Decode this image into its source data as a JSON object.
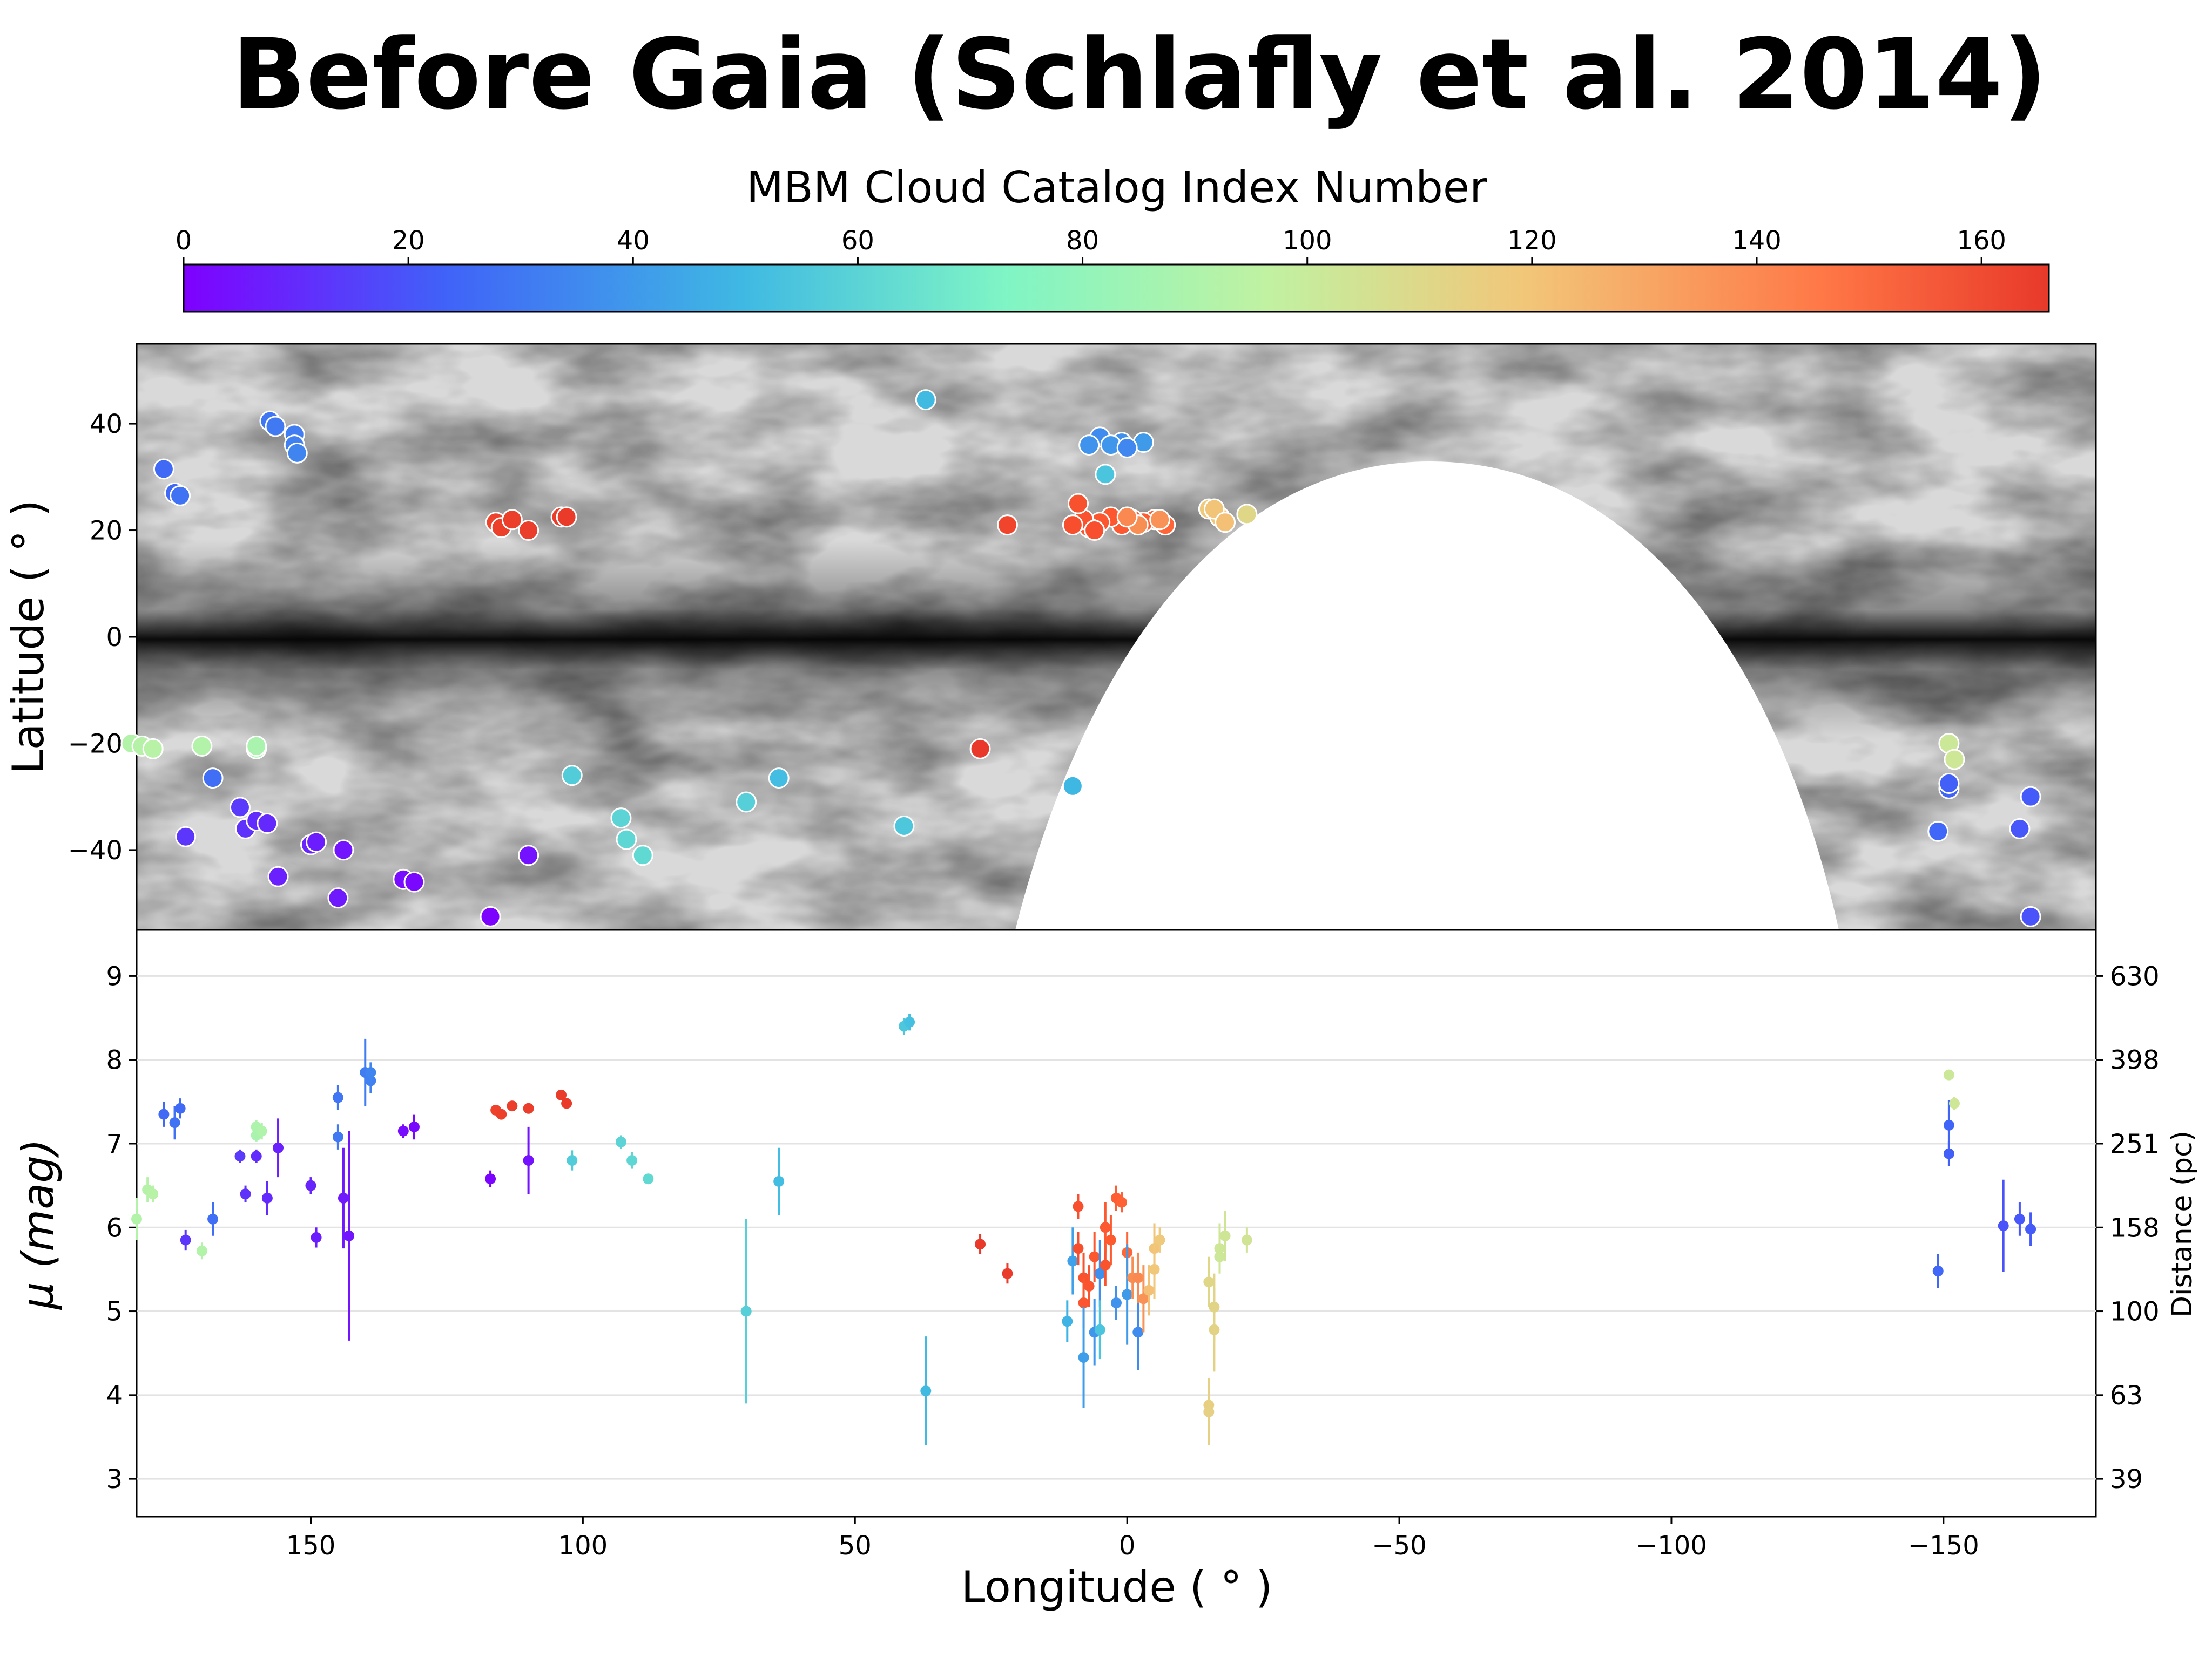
{
  "figure": {
    "title": "Before Gaia (Schlafly et al. 2014)"
  },
  "colorbar": {
    "label": "MBM Cloud Catalog Index Number",
    "range": [
      0,
      166
    ],
    "ticks": [
      0,
      20,
      40,
      60,
      80,
      100,
      120,
      140,
      160
    ],
    "colormap": "rainbow",
    "stops": [
      "#7f00ff",
      "#4062f8",
      "#3fb9e3",
      "#7ff5c5",
      "#c0f2a2",
      "#f2c679",
      "#ff5b30",
      "#e8392a"
    ]
  },
  "chart_data": [
    {
      "type": "scatter",
      "name": "sky-map",
      "background": "grayscale dust extinction map of the Galactic plane; unobserved southern region shown blank",
      "xlabel": "",
      "ylabel": "Latitude ( ° )",
      "xlim": [
        182,
        -178
      ],
      "ylim": [
        -55,
        55
      ],
      "yticks": [
        -40,
        -20,
        0,
        20,
        40
      ],
      "points": [
        {
          "l": 177,
          "b": 31.5,
          "c": 26
        },
        {
          "l": 175,
          "b": 27,
          "c": 26
        },
        {
          "l": 174,
          "b": 26.5,
          "c": 28
        },
        {
          "l": 157.5,
          "b": 40.5,
          "c": 29
        },
        {
          "l": 156.5,
          "b": 39.5,
          "c": 30
        },
        {
          "l": 153,
          "b": 38,
          "c": 31
        },
        {
          "l": 153,
          "b": 36,
          "c": 32
        },
        {
          "l": 152.5,
          "b": 34.5,
          "c": 33
        },
        {
          "l": 116,
          "b": 21.5,
          "c": 160
        },
        {
          "l": 115,
          "b": 20.5,
          "c": 161
        },
        {
          "l": 113,
          "b": 22,
          "c": 162
        },
        {
          "l": 110,
          "b": 20,
          "c": 163
        },
        {
          "l": 104,
          "b": 22.5,
          "c": 164
        },
        {
          "l": 103,
          "b": 22.5,
          "c": 165
        },
        {
          "l": 1,
          "b": 36.5,
          "c": 36
        },
        {
          "l": 5,
          "b": 37.5,
          "c": 35
        },
        {
          "l": 7,
          "b": 36,
          "c": 37
        },
        {
          "l": 3,
          "b": 36,
          "c": 38
        },
        {
          "l": -3,
          "b": 36.5,
          "c": 39
        },
        {
          "l": 0,
          "b": 35.5,
          "c": 34
        },
        {
          "l": 4,
          "b": 30.5,
          "c": 52
        },
        {
          "l": 37,
          "b": 44.5,
          "c": 48
        },
        {
          "l": -7,
          "b": 21,
          "c": 140
        },
        {
          "l": -5,
          "b": 22,
          "c": 141
        },
        {
          "l": -3,
          "b": 21.5,
          "c": 142
        },
        {
          "l": -1,
          "b": 22,
          "c": 143
        },
        {
          "l": 1,
          "b": 21,
          "c": 144
        },
        {
          "l": 3,
          "b": 22.5,
          "c": 145
        },
        {
          "l": 5,
          "b": 21.5,
          "c": 146
        },
        {
          "l": 7,
          "b": 20.5,
          "c": 147
        },
        {
          "l": 8,
          "b": 22,
          "c": 148
        },
        {
          "l": 9,
          "b": 25,
          "c": 149
        },
        {
          "l": 6,
          "b": 20,
          "c": 150
        },
        {
          "l": 10,
          "b": 21,
          "c": 151
        },
        {
          "l": -6,
          "b": 22,
          "c": 130
        },
        {
          "l": -2,
          "b": 21,
          "c": 131
        },
        {
          "l": 0,
          "b": 22.5,
          "c": 132
        },
        {
          "l": -15,
          "b": 24,
          "c": 117
        },
        {
          "l": -17,
          "b": 22.5,
          "c": 118
        },
        {
          "l": -16,
          "b": 24,
          "c": 119
        },
        {
          "l": -18,
          "b": 21.5,
          "c": 120
        },
        {
          "l": -22,
          "b": 23,
          "c": 110
        },
        {
          "l": 22,
          "b": 21,
          "c": 158
        },
        {
          "l": 183,
          "b": -20,
          "c": 90
        },
        {
          "l": 181,
          "b": -20.5,
          "c": 91
        },
        {
          "l": 179,
          "b": -21,
          "c": 92
        },
        {
          "l": 170,
          "b": -20.5,
          "c": 90
        },
        {
          "l": 160,
          "b": -21,
          "c": 88
        },
        {
          "l": 160,
          "b": -20.5,
          "c": 87
        },
        {
          "l": 173,
          "b": -37.5,
          "c": 13
        },
        {
          "l": 168,
          "b": -26.5,
          "c": 27
        },
        {
          "l": 163,
          "b": -32,
          "c": 14
        },
        {
          "l": 162,
          "b": -36,
          "c": 12
        },
        {
          "l": 160,
          "b": -34.5,
          "c": 11
        },
        {
          "l": 158,
          "b": -35,
          "c": 10
        },
        {
          "l": 156,
          "b": -45,
          "c": 8
        },
        {
          "l": 150,
          "b": -39,
          "c": 9
        },
        {
          "l": 149,
          "b": -38.5,
          "c": 7
        },
        {
          "l": 145,
          "b": -49,
          "c": 6
        },
        {
          "l": 144,
          "b": -40,
          "c": 5
        },
        {
          "l": 133,
          "b": -45.5,
          "c": 3
        },
        {
          "l": 131,
          "b": -46,
          "c": 2
        },
        {
          "l": 117,
          "b": -52.5,
          "c": 1
        },
        {
          "l": 110,
          "b": -41,
          "c": 4
        },
        {
          "l": 102,
          "b": -26,
          "c": 55
        },
        {
          "l": 93,
          "b": -34,
          "c": 58
        },
        {
          "l": 92,
          "b": -38,
          "c": 59
        },
        {
          "l": 89,
          "b": -41,
          "c": 60
        },
        {
          "l": 70,
          "b": -31,
          "c": 56
        },
        {
          "l": 64,
          "b": -26.5,
          "c": 49
        },
        {
          "l": 41,
          "b": -35.5,
          "c": 53
        },
        {
          "l": 27,
          "b": -21,
          "c": 166
        },
        {
          "l": 10,
          "b": -28,
          "c": 47
        },
        {
          "l": -149,
          "b": -36.5,
          "c": 25
        },
        {
          "l": -151,
          "b": -28.5,
          "c": 24
        },
        {
          "l": -151,
          "b": -27.5,
          "c": 23
        },
        {
          "l": -151,
          "b": -20,
          "c": 100
        },
        {
          "l": -152,
          "b": -23,
          "c": 101
        },
        {
          "l": -166,
          "b": -30,
          "c": 22
        },
        {
          "l": -164,
          "b": -36,
          "c": 21
        },
        {
          "l": -166,
          "b": -52.5,
          "c": 20
        }
      ]
    },
    {
      "type": "scatter",
      "name": "distance-modulus",
      "xlabel": "Longitude ( ° )",
      "ylabel": "μ (mag)",
      "ylabel_right": "Distance (pc)",
      "xlim": [
        182,
        -178
      ],
      "ylim": [
        2.55,
        9.55
      ],
      "xticks": [
        150,
        100,
        50,
        0,
        -50,
        -100,
        -150
      ],
      "xtick_labels": [
        "150",
        "100",
        "50",
        "0",
        "−50",
        "−100",
        "−150"
      ],
      "yticks": [
        3,
        4,
        5,
        6,
        7,
        8,
        9
      ],
      "yticks_right": [
        {
          "mu": 3,
          "label": "39"
        },
        {
          "mu": 4,
          "label": "63"
        },
        {
          "mu": 5,
          "label": "100"
        },
        {
          "mu": 6,
          "label": "158"
        },
        {
          "mu": 7,
          "label": "251"
        },
        {
          "mu": 8,
          "label": "398"
        },
        {
          "mu": 9,
          "label": "630"
        }
      ],
      "points": [
        {
          "l": 177,
          "mu": 7.35,
          "err": 0.15,
          "c": 26
        },
        {
          "l": 175,
          "mu": 7.25,
          "err": 0.2,
          "c": 28
        },
        {
          "l": 174,
          "mu": 7.42,
          "err": 0.12,
          "c": 26
        },
        {
          "l": 173,
          "mu": 5.85,
          "err": 0.12,
          "c": 13
        },
        {
          "l": 168,
          "mu": 6.1,
          "err": 0.2,
          "c": 27
        },
        {
          "l": 182,
          "mu": 6.1,
          "err": 0.25,
          "c": 90
        },
        {
          "l": 180,
          "mu": 6.45,
          "err": 0.15,
          "c": 91
        },
        {
          "l": 179,
          "mu": 6.4,
          "err": 0.1,
          "c": 92
        },
        {
          "l": 170,
          "mu": 5.72,
          "err": 0.1,
          "c": 90
        },
        {
          "l": 160,
          "mu": 7.2,
          "err": 0.08,
          "c": 88
        },
        {
          "l": 160,
          "mu": 7.1,
          "err": 0.08,
          "c": 87
        },
        {
          "l": 159,
          "mu": 7.15,
          "err": 0.1,
          "c": 89
        },
        {
          "l": 163,
          "mu": 6.85,
          "err": 0.08,
          "c": 14
        },
        {
          "l": 162,
          "mu": 6.4,
          "err": 0.1,
          "c": 12
        },
        {
          "l": 160,
          "mu": 6.85,
          "err": 0.08,
          "c": 11
        },
        {
          "l": 158,
          "mu": 6.35,
          "err": 0.2,
          "c": 10
        },
        {
          "l": 156,
          "mu": 6.95,
          "err": 0.35,
          "c": 8
        },
        {
          "l": 150,
          "mu": 6.5,
          "err": 0.1,
          "c": 9
        },
        {
          "l": 149,
          "mu": 5.88,
          "err": 0.12,
          "c": 7
        },
        {
          "l": 145,
          "mu": 7.08,
          "err": 0.15,
          "c": 30
        },
        {
          "l": 145,
          "mu": 7.55,
          "err": 0.15,
          "c": 29
        },
        {
          "l": 144,
          "mu": 6.35,
          "err": 0.6,
          "c": 6
        },
        {
          "l": 143,
          "mu": 5.9,
          "err": 1.25,
          "c": 5
        },
        {
          "l": 140,
          "mu": 7.85,
          "err": 0.4,
          "c": 31
        },
        {
          "l": 139,
          "mu": 7.75,
          "err": 0.15,
          "c": 32
        },
        {
          "l": 139,
          "mu": 7.85,
          "err": 0.12,
          "c": 33
        },
        {
          "l": 133,
          "mu": 7.15,
          "err": 0.08,
          "c": 3
        },
        {
          "l": 131,
          "mu": 7.2,
          "err": 0.15,
          "c": 2
        },
        {
          "l": 117,
          "mu": 6.58,
          "err": 0.1,
          "c": 1
        },
        {
          "l": 110,
          "mu": 6.8,
          "err": 0.4,
          "c": 4
        },
        {
          "l": 116,
          "mu": 7.4,
          "err": 0.05,
          "c": 160
        },
        {
          "l": 115,
          "mu": 7.35,
          "err": 0.06,
          "c": 161
        },
        {
          "l": 113,
          "mu": 7.45,
          "err": 0.05,
          "c": 162
        },
        {
          "l": 110,
          "mu": 7.42,
          "err": 0.05,
          "c": 163
        },
        {
          "l": 104,
          "mu": 7.58,
          "err": 0.05,
          "c": 164
        },
        {
          "l": 103,
          "mu": 7.48,
          "err": 0.05,
          "c": 165
        },
        {
          "l": 102,
          "mu": 6.8,
          "err": 0.12,
          "c": 55
        },
        {
          "l": 93,
          "mu": 7.02,
          "err": 0.08,
          "c": 58
        },
        {
          "l": 91,
          "mu": 6.8,
          "err": 0.1,
          "c": 59
        },
        {
          "l": 88,
          "mu": 6.58,
          "err": 0.06,
          "c": 60
        },
        {
          "l": 70,
          "mu": 5.0,
          "err": 1.1,
          "c": 56
        },
        {
          "l": 64,
          "mu": 6.55,
          "err": 0.4,
          "c": 49
        },
        {
          "l": 41,
          "mu": 8.4,
          "err": 0.1,
          "c": 53
        },
        {
          "l": 40,
          "mu": 8.45,
          "err": 0.1,
          "c": 50
        },
        {
          "l": 37,
          "mu": 4.05,
          "err": 0.65,
          "c": 48
        },
        {
          "l": 27,
          "mu": 5.8,
          "err": 0.12,
          "c": 166
        },
        {
          "l": 22,
          "mu": 5.45,
          "err": 0.12,
          "c": 164
        },
        {
          "l": 11,
          "mu": 4.88,
          "err": 0.25,
          "c": 46
        },
        {
          "l": 10,
          "mu": 5.6,
          "err": 0.4,
          "c": 41
        },
        {
          "l": 9,
          "mu": 6.25,
          "err": 0.15,
          "c": 150
        },
        {
          "l": 9,
          "mu": 5.75,
          "err": 0.2,
          "c": 151
        },
        {
          "l": 8,
          "mu": 5.4,
          "err": 0.3,
          "c": 149
        },
        {
          "l": 8,
          "mu": 5.1,
          "err": 0.3,
          "c": 146
        },
        {
          "l": 8,
          "mu": 4.45,
          "err": 0.6,
          "c": 40
        },
        {
          "l": 7,
          "mu": 5.3,
          "err": 0.25,
          "c": 148
        },
        {
          "l": 6,
          "mu": 5.65,
          "err": 0.3,
          "c": 145
        },
        {
          "l": 6,
          "mu": 4.75,
          "err": 0.4,
          "c": 38
        },
        {
          "l": 5,
          "mu": 5.45,
          "err": 0.4,
          "c": 36
        },
        {
          "l": 5,
          "mu": 4.78,
          "err": 0.35,
          "c": 52
        },
        {
          "l": 4,
          "mu": 5.55,
          "err": 0.25,
          "c": 147
        },
        {
          "l": 4,
          "mu": 6.0,
          "err": 0.3,
          "c": 144
        },
        {
          "l": 3,
          "mu": 5.85,
          "err": 0.3,
          "c": 143
        },
        {
          "l": 2,
          "mu": 6.35,
          "err": 0.15,
          "c": 142
        },
        {
          "l": 2,
          "mu": 5.1,
          "err": 0.2,
          "c": 37
        },
        {
          "l": 1,
          "mu": 6.3,
          "err": 0.12,
          "c": 141
        },
        {
          "l": 0,
          "mu": 5.7,
          "err": 0.25,
          "c": 140
        },
        {
          "l": 0,
          "mu": 5.2,
          "err": 0.6,
          "c": 39
        },
        {
          "l": -1,
          "mu": 5.4,
          "err": 0.25,
          "c": 131
        },
        {
          "l": -2,
          "mu": 4.75,
          "err": 0.45,
          "c": 35
        },
        {
          "l": -2,
          "mu": 5.4,
          "err": 0.3,
          "c": 132
        },
        {
          "l": -3,
          "mu": 5.15,
          "err": 0.4,
          "c": 130
        },
        {
          "l": -4,
          "mu": 5.25,
          "err": 0.3,
          "c": 120
        },
        {
          "l": -5,
          "mu": 5.75,
          "err": 0.3,
          "c": 119
        },
        {
          "l": -5,
          "mu": 5.5,
          "err": 0.35,
          "c": 118
        },
        {
          "l": -6,
          "mu": 5.85,
          "err": 0.15,
          "c": 117
        },
        {
          "l": -15,
          "mu": 5.35,
          "err": 0.3,
          "c": 110
        },
        {
          "l": -15,
          "mu": 3.88,
          "err": 0.3,
          "c": 114
        },
        {
          "l": -15,
          "mu": 3.8,
          "err": 0.4,
          "c": 113
        },
        {
          "l": -16,
          "mu": 4.78,
          "err": 0.5,
          "c": 112
        },
        {
          "l": -16,
          "mu": 5.05,
          "err": 0.4,
          "c": 111
        },
        {
          "l": -17,
          "mu": 5.65,
          "err": 0.2,
          "c": 100
        },
        {
          "l": -17,
          "mu": 5.75,
          "err": 0.3,
          "c": 101
        },
        {
          "l": -18,
          "mu": 5.9,
          "err": 0.3,
          "c": 102
        },
        {
          "l": -22,
          "mu": 5.85,
          "err": 0.15,
          "c": 103
        },
        {
          "l": -149,
          "mu": 5.48,
          "err": 0.2,
          "c": 25
        },
        {
          "l": -151,
          "mu": 7.22,
          "err": 0.3,
          "c": 24
        },
        {
          "l": -151,
          "mu": 6.88,
          "err": 0.15,
          "c": 23
        },
        {
          "l": -151,
          "mu": 7.82,
          "err": 0.05,
          "c": 100
        },
        {
          "l": -152,
          "mu": 7.48,
          "err": 0.08,
          "c": 101
        },
        {
          "l": -166,
          "mu": 5.98,
          "err": 0.2,
          "c": 22
        },
        {
          "l": -164,
          "mu": 6.1,
          "err": 0.2,
          "c": 21
        },
        {
          "l": -161,
          "mu": 6.02,
          "err": 0.55,
          "c": 20
        }
      ]
    }
  ]
}
